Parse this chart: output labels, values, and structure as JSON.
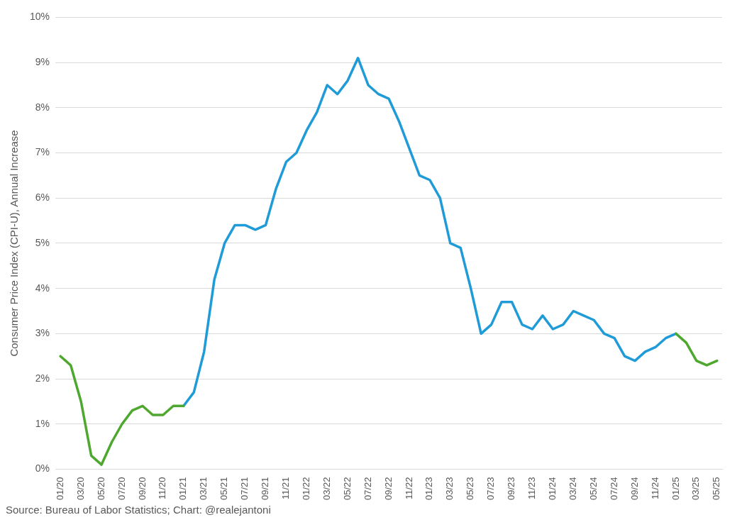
{
  "chart_data": {
    "type": "line",
    "ylabel": "Consumer Price Index (CPI-U), Annual Increase",
    "categories": [
      "01/20",
      null,
      "03/20",
      null,
      "05/20",
      null,
      "07/20",
      null,
      "09/20",
      null,
      "11/20",
      null,
      "01/21",
      null,
      "03/21",
      null,
      "05/21",
      null,
      "07/21",
      null,
      "09/21",
      null,
      "11/21",
      null,
      "01/22",
      null,
      "03/22",
      null,
      "05/22",
      null,
      "07/22",
      null,
      "09/22",
      null,
      "11/22",
      null,
      "01/23",
      null,
      "03/23",
      null,
      "05/23",
      null,
      "07/23",
      null,
      "09/23",
      null,
      "11/23",
      null,
      "01/24",
      null,
      "03/24",
      null,
      "05/24",
      null,
      "07/24",
      null,
      "09/24",
      null,
      "11/24",
      null,
      "01/25",
      null,
      "03/25",
      null,
      "05/25"
    ],
    "series": [
      {
        "color": "#4ea72e",
        "values": [
          2.5,
          2.3,
          1.5,
          0.3,
          0.1,
          0.6,
          1.0,
          1.3,
          1.4,
          1.2,
          1.2,
          1.4,
          1.4,
          null,
          null,
          null,
          null,
          null,
          null,
          null,
          null,
          null,
          null,
          null,
          null,
          null,
          null,
          null,
          null,
          null,
          null,
          null,
          null,
          null,
          null,
          null,
          null,
          null,
          null,
          null,
          null,
          null,
          null,
          null,
          null,
          null,
          null,
          null,
          null,
          null,
          null,
          null,
          null,
          null,
          null,
          null,
          null,
          null,
          null,
          null,
          3.0,
          2.8,
          2.4,
          2.3,
          2.4
        ]
      },
      {
        "color": "#1f9bd7",
        "values": [
          null,
          null,
          null,
          null,
          null,
          null,
          null,
          null,
          null,
          null,
          null,
          null,
          1.4,
          1.7,
          2.6,
          4.2,
          5.0,
          5.4,
          5.4,
          5.3,
          5.4,
          6.2,
          6.8,
          7.0,
          7.5,
          7.9,
          8.5,
          8.3,
          8.6,
          9.1,
          8.5,
          8.3,
          8.2,
          7.7,
          7.1,
          6.5,
          6.4,
          6.0,
          5.0,
          4.9,
          4.0,
          3.0,
          3.2,
          3.7,
          3.7,
          3.2,
          3.1,
          3.4,
          3.1,
          3.2,
          3.5,
          3.4,
          3.3,
          3.0,
          2.9,
          2.5,
          2.4,
          2.6,
          2.7,
          2.9,
          3.0,
          null,
          null,
          null,
          null
        ]
      }
    ],
    "ylim": [
      0,
      10
    ],
    "yticks": [
      {
        "value": 0,
        "label": "0%"
      },
      {
        "value": 1,
        "label": "1%"
      },
      {
        "value": 2,
        "label": "2%"
      },
      {
        "value": 3,
        "label": "3%"
      },
      {
        "value": 4,
        "label": "4%"
      },
      {
        "value": 5,
        "label": "5%"
      },
      {
        "value": 6,
        "label": "6%"
      },
      {
        "value": 7,
        "label": "7%"
      },
      {
        "value": 8,
        "label": "8%"
      },
      {
        "value": 9,
        "label": "9%"
      },
      {
        "value": 10,
        "label": "10%"
      }
    ],
    "grid": "y",
    "legend": false,
    "marker": "none",
    "line_style": "solid",
    "annotations": [
      "Source: Bureau of Labor Statistics; Chart: @realejantoni"
    ]
  }
}
